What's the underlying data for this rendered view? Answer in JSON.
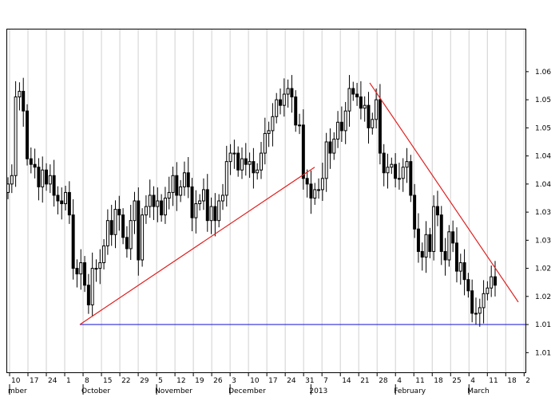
{
  "chart_data": {
    "type": "candlestick",
    "title": "",
    "xlabel": "",
    "ylabel": "",
    "y_axis_position": "right",
    "grid": "vertical",
    "ylim": [
      1.003,
      1.064
    ],
    "y_ticks": [
      {
        "value": 1.0065,
        "label": "1.01"
      },
      {
        "value": 1.0115,
        "label": "1.01"
      },
      {
        "value": 1.0165,
        "label": "1.02"
      },
      {
        "value": 1.0215,
        "label": "1.02"
      },
      {
        "value": 1.0265,
        "label": "1.03"
      },
      {
        "value": 1.0315,
        "label": "1.03"
      },
      {
        "value": 1.0365,
        "label": "1.04"
      },
      {
        "value": 1.0415,
        "label": "1.04"
      },
      {
        "value": 1.0465,
        "label": "1.05"
      },
      {
        "value": 1.0515,
        "label": "1.05"
      },
      {
        "value": 1.0565,
        "label": "1.06"
      }
    ],
    "x_day_labels": [
      "10",
      "17",
      "24",
      "1",
      "8",
      "15",
      "22",
      "29",
      "5",
      "12",
      "19",
      "26",
      "3",
      "10",
      "17",
      "24",
      "31",
      "7",
      "14",
      "21",
      "28",
      "4",
      "11",
      "18",
      "25",
      "4",
      "11",
      "18",
      "2"
    ],
    "x_month_labels": [
      {
        "label": "mber",
        "at": 0
      },
      {
        "label": "October",
        "at": 4
      },
      {
        "label": "November",
        "at": 8
      },
      {
        "label": "December",
        "at": 12
      },
      {
        "label": "2013",
        "at": 16.4
      },
      {
        "label": "February",
        "at": 21
      },
      {
        "label": "March",
        "at": 25
      }
    ],
    "close": [
      1.0365,
      1.038,
      1.052,
      1.053,
      1.0495,
      1.041,
      1.04,
      1.0395,
      1.036,
      1.039,
      1.0365,
      1.038,
      1.0345,
      1.0335,
      1.033,
      1.035,
      1.031,
      1.0215,
      1.0205,
      1.0225,
      1.0185,
      1.015,
      1.0215,
      1.0215,
      1.0225,
      1.0255,
      1.03,
      1.0275,
      1.032,
      1.031,
      1.027,
      1.025,
      1.03,
      1.0335,
      1.023,
      1.031,
      1.0325,
      1.0345,
      1.0325,
      1.0335,
      1.031,
      1.034,
      1.035,
      1.038,
      1.0345,
      1.036,
      1.0385,
      1.036,
      1.0305,
      1.033,
      1.0335,
      1.0355,
      1.03,
      1.0325,
      1.03,
      1.0335,
      1.0345,
      1.0405,
      1.042,
      1.042,
      1.039,
      1.041,
      1.04,
      1.0405,
      1.0385,
      1.039,
      1.042,
      1.0455,
      1.046,
      1.0485,
      1.0515,
      1.0505,
      1.0525,
      1.0535,
      1.052,
      1.047,
      1.047,
      1.0375,
      1.0365,
      1.034,
      1.0355,
      1.0355,
      1.0375,
      1.044,
      1.042,
      1.0445,
      1.0475,
      1.046,
      1.0495,
      1.0535,
      1.0525,
      1.052,
      1.05,
      1.0505,
      1.0465,
      1.048,
      1.0515,
      1.042,
      1.0385,
      1.0395,
      1.04,
      1.0375,
      1.0375,
      1.0395,
      1.0405,
      1.0345,
      1.0285,
      1.0245,
      1.0235,
      1.0275,
      1.0245,
      1.0325,
      1.031,
      1.0245,
      1.023,
      1.028,
      1.026,
      1.021,
      1.0225,
      1.0195,
      1.0175,
      1.0135,
      1.0135,
      1.0145,
      1.017,
      1.018,
      1.02,
      1.0185
    ]
  }
}
